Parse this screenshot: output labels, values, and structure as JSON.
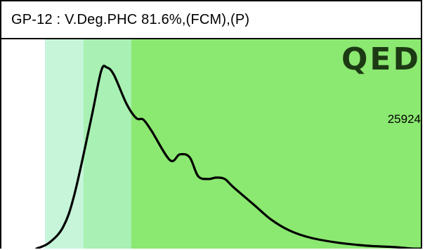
{
  "title": "GP-12 : V.Deg.PHC 81.6%,(FCM),(P)",
  "logo": "QED",
  "run_number": "25924",
  "colors": {
    "fill_main": "#8be870",
    "fill_light": "#c6f5da",
    "fill_mid": "#a8f0b3",
    "curve": "#000000"
  },
  "chart_data": {
    "type": "line",
    "title": "",
    "xlabel": "",
    "ylabel": "",
    "series": [
      {
        "values": [
          0,
          8,
          30,
          75,
          180,
          245,
          250,
          240,
          200,
          180,
          178,
          162,
          122,
          130,
          126,
          100,
          96,
          98,
          96,
          85,
          60,
          40,
          25,
          15,
          8,
          4,
          2,
          0,
          0
        ]
      }
    ]
  }
}
